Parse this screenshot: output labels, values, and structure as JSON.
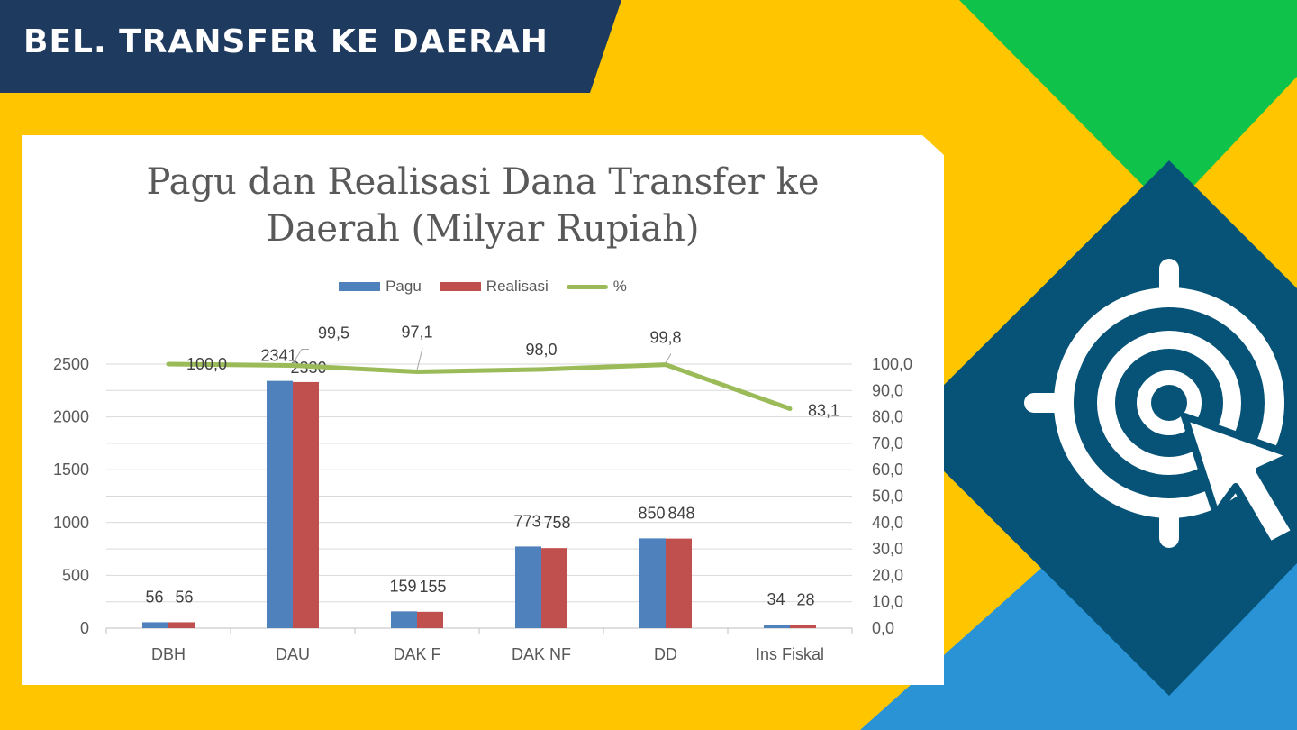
{
  "header": {
    "title": "BEL. TRANSFER KE DAERAH"
  },
  "theme": {
    "background": "#ffc600",
    "header_band": "#1e3a5f",
    "deco_green": "#0fc24a",
    "deco_blue": "#2a93d5",
    "deco_navy": "#065377"
  },
  "icon": {
    "name": "target-cursor-icon"
  },
  "chart_data": {
    "type": "bar",
    "title": "Pagu dan Realisasi Dana Transfer ke Daerah (Milyar Rupiah)",
    "title_lines": [
      "Pagu dan Realisasi Dana Transfer ke",
      "Daerah (Milyar Rupiah)"
    ],
    "categories": [
      "DBH",
      "DAU",
      "DAK F",
      "DAK NF",
      "DD",
      "Ins Fiskal"
    ],
    "series": [
      {
        "name": "Pagu",
        "type": "bar",
        "axis": "left",
        "color": "#4f81bd",
        "values": [
          56,
          2341,
          159,
          773,
          850,
          34
        ],
        "labels": [
          "56",
          "2341",
          "159",
          "773",
          "850",
          "34"
        ]
      },
      {
        "name": "Realisasi",
        "type": "bar",
        "axis": "left",
        "color": "#c0504d",
        "values": [
          56,
          2330,
          155,
          758,
          848,
          28
        ],
        "labels": [
          "56",
          "2330",
          "155",
          "758",
          "848",
          "28"
        ]
      },
      {
        "name": "%",
        "type": "line",
        "axis": "right",
        "color": "#9bbb59",
        "values": [
          100.0,
          99.5,
          97.1,
          98.0,
          99.8,
          83.1
        ],
        "labels": [
          "100,0",
          "99,5",
          "97,1",
          "98,0",
          "99,8",
          "83,1"
        ]
      }
    ],
    "y_left": {
      "ylim": [
        0,
        2500
      ],
      "ticks": [
        "0",
        "500",
        "1000",
        "1500",
        "2000",
        "2500"
      ]
    },
    "y_right": {
      "ylim": [
        0,
        100
      ],
      "ticks": [
        "0,0",
        "10,0",
        "20,0",
        "30,0",
        "40,0",
        "50,0",
        "60,0",
        "70,0",
        "80,0",
        "90,0",
        "100,0"
      ]
    },
    "grid": true,
    "legend_position": "top-center",
    "xlabel": "",
    "ylabel": ""
  }
}
